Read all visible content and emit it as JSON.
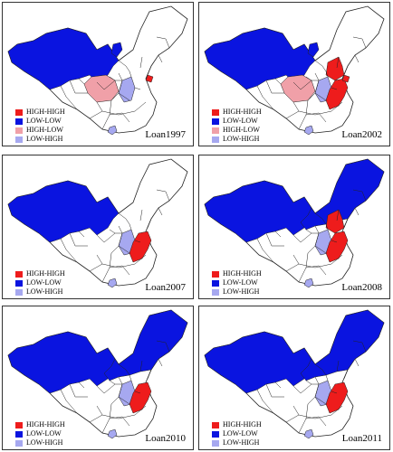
{
  "colors": {
    "HIGH-HIGH": "#ee1c1c",
    "LOW-LOW": "#0a14e0",
    "HIGH-LOW": "#f0a0a8",
    "LOW-HIGH": "#a6a8f0",
    "not_significant": "#ffffff",
    "border": "#222222"
  },
  "panels": [
    {
      "title": "Loan1997",
      "legend": [
        "HIGH-HIGH",
        "LOW-LOW",
        "HIGH-LOW",
        "LOW-HIGH"
      ],
      "regions": {
        "west_lowlow": true,
        "north_lowlow": false,
        "hebei_lowlow": true,
        "sichuan_highlow": true,
        "jiangsu_lowhigh": true,
        "zhejiang_lowhigh": false,
        "shandong_highhigh": false,
        "coast_highhigh": false,
        "shanghai_highhigh": true,
        "hainan_lowhigh": true
      }
    },
    {
      "title": "Loan2002",
      "legend": [
        "HIGH-HIGH",
        "LOW-LOW",
        "HIGH-LOW",
        "LOW-HIGH"
      ],
      "regions": {
        "west_lowlow": true,
        "north_lowlow": false,
        "hebei_lowlow": true,
        "sichuan_highlow": true,
        "jiangsu_lowhigh": true,
        "zhejiang_lowhigh": false,
        "shandong_highhigh": true,
        "coast_highhigh": true,
        "shanghai_highhigh": true,
        "hainan_lowhigh": true
      }
    },
    {
      "title": "Loan2007",
      "legend": [
        "HIGH-HIGH",
        "LOW-LOW",
        "LOW-HIGH"
      ],
      "regions": {
        "west_lowlow": true,
        "north_lowlow": false,
        "hebei_lowlow": false,
        "sichuan_highlow": false,
        "jiangsu_lowhigh": true,
        "zhejiang_lowhigh": false,
        "shandong_highhigh": false,
        "coast_highhigh": true,
        "shanghai_highhigh": false,
        "hainan_lowhigh": true
      }
    },
    {
      "title": "Loan2008",
      "legend": [
        "HIGH-HIGH",
        "LOW-LOW",
        "LOW-HIGH"
      ],
      "regions": {
        "west_lowlow": true,
        "north_lowlow": true,
        "hebei_lowlow": false,
        "sichuan_highlow": false,
        "jiangsu_lowhigh": true,
        "zhejiang_lowhigh": false,
        "shandong_highhigh": true,
        "coast_highhigh": true,
        "shanghai_highhigh": false,
        "hainan_lowhigh": true
      }
    },
    {
      "title": "Loan2010",
      "legend": [
        "HIGH-HIGH",
        "LOW-LOW",
        "LOW-HIGH"
      ],
      "regions": {
        "west_lowlow": true,
        "north_lowlow": true,
        "hebei_lowlow": false,
        "sichuan_highlow": false,
        "jiangsu_lowhigh": true,
        "zhejiang_lowhigh": false,
        "shandong_highhigh": false,
        "coast_highhigh": true,
        "shanghai_highhigh": false,
        "hainan_lowhigh": true
      }
    },
    {
      "title": "Loan2011",
      "legend": [
        "HIGH-HIGH",
        "LOW-LOW",
        "LOW-HIGH"
      ],
      "regions": {
        "west_lowlow": true,
        "north_lowlow": true,
        "hebei_lowlow": false,
        "sichuan_highlow": false,
        "jiangsu_lowhigh": true,
        "zhejiang_lowhigh": false,
        "shandong_highhigh": false,
        "coast_highhigh": true,
        "shanghai_highhigh": false,
        "hainan_lowhigh": true
      }
    }
  ]
}
